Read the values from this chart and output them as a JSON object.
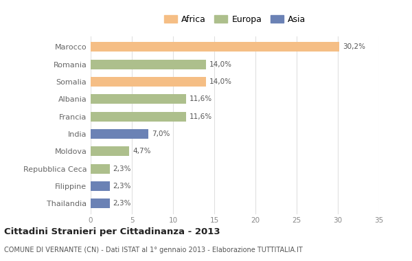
{
  "categories": [
    "Marocco",
    "Romania",
    "Somalia",
    "Albania",
    "Francia",
    "India",
    "Moldova",
    "Repubblica Ceca",
    "Filippine",
    "Thailandia"
  ],
  "values": [
    30.2,
    14.0,
    14.0,
    11.6,
    11.6,
    7.0,
    4.7,
    2.3,
    2.3,
    2.3
  ],
  "labels": [
    "30,2%",
    "14,0%",
    "14,0%",
    "11,6%",
    "11,6%",
    "7,0%",
    "4,7%",
    "2,3%",
    "2,3%",
    "2,3%"
  ],
  "continents": [
    "Africa",
    "Europa",
    "Africa",
    "Europa",
    "Europa",
    "Asia",
    "Europa",
    "Europa",
    "Asia",
    "Asia"
  ],
  "colors": {
    "Africa": "#F5BE85",
    "Europa": "#ADBF8C",
    "Asia": "#6B82B5"
  },
  "legend_labels": [
    "Africa",
    "Europa",
    "Asia"
  ],
  "legend_colors": [
    "#F5BE85",
    "#ADBF8C",
    "#6B82B5"
  ],
  "xlim": [
    0,
    35
  ],
  "xticks": [
    0,
    5,
    10,
    15,
    20,
    25,
    30,
    35
  ],
  "title": "Cittadini Stranieri per Cittadinanza - 2013",
  "subtitle": "COMUNE DI VERNANTE (CN) - Dati ISTAT al 1° gennaio 2013 - Elaborazione TUTTITALIA.IT",
  "background_color": "#ffffff",
  "bar_height": 0.55,
  "grid_color": "#e0e0e0"
}
